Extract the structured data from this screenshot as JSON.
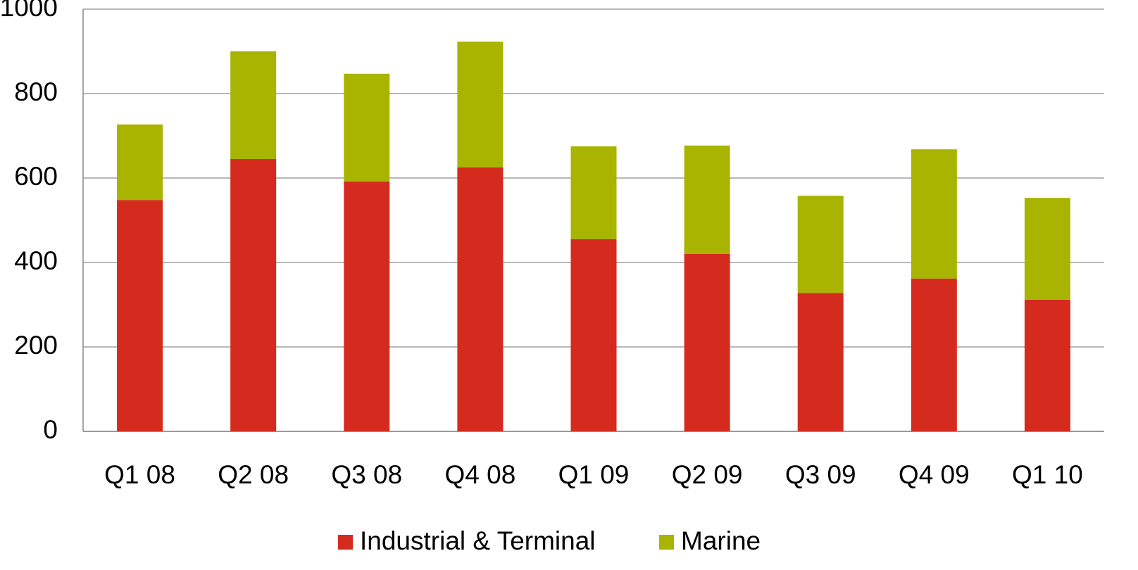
{
  "chart_data": {
    "type": "stacked_bar",
    "categories": [
      "Q1 08",
      "Q2 08",
      "Q3 08",
      "Q4 08",
      "Q1 09",
      "Q2 09",
      "Q3 09",
      "Q4 09",
      "Q1 10"
    ],
    "series": [
      {
        "name": "Industrial & Terminal",
        "color": "#d52b1e",
        "values": [
          548,
          645,
          592,
          625,
          455,
          420,
          328,
          362,
          312
        ]
      },
      {
        "name": "Marine",
        "color": "#a8b400",
        "values": [
          179,
          255,
          255,
          298,
          220,
          257,
          230,
          306,
          241
        ]
      }
    ],
    "ylim": [
      0,
      1000
    ],
    "yticks": [
      0,
      200,
      400,
      600,
      800,
      1000
    ],
    "grid": true,
    "legend": "bottom"
  }
}
